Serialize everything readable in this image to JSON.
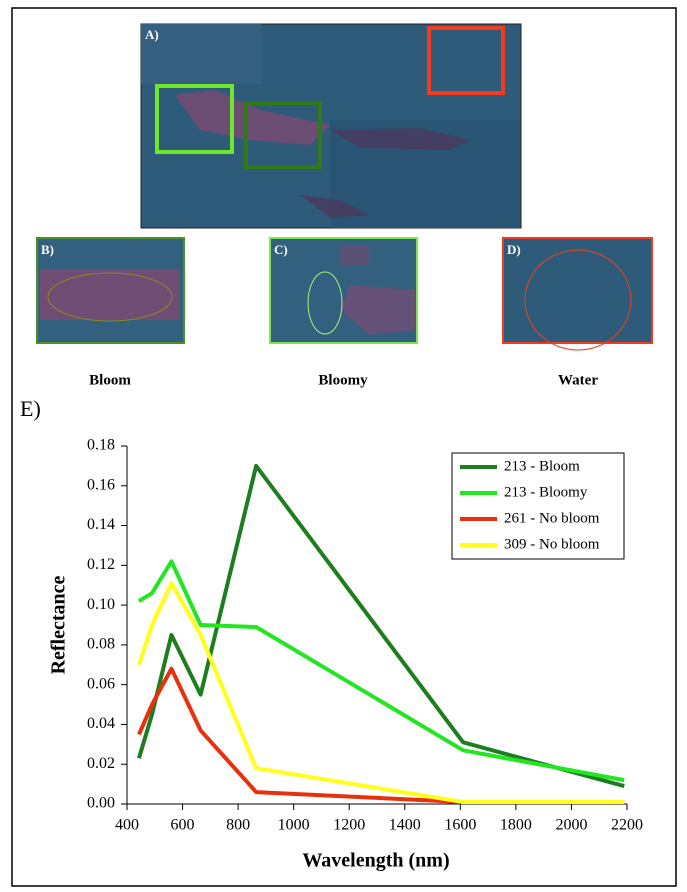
{
  "panels": [
    {
      "label": "A)"
    },
    {
      "label": "B)",
      "caption": "Bloom"
    },
    {
      "label": "C)",
      "caption": "Bloomy"
    },
    {
      "label": "D)",
      "caption": "Water"
    },
    {
      "label": "E)"
    }
  ],
  "chart_data": {
    "type": "line",
    "x_label": "Wavelength (nm)",
    "y_label": "Reflectance",
    "x": [
      443,
      490,
      560,
      665,
      865,
      1610,
      2190
    ],
    "series": [
      {
        "name": "213 - Bloom",
        "color": "#1e7d1e",
        "values": [
          0.023,
          0.045,
          0.085,
          0.055,
          0.17,
          0.031,
          0.009
        ]
      },
      {
        "name": "213 - Bloomy",
        "color": "#22e622",
        "values": [
          0.102,
          0.106,
          0.122,
          0.09,
          0.089,
          0.027,
          0.012
        ]
      },
      {
        "name": "261 - No bloom",
        "color": "#e8300e",
        "values": [
          0.035,
          0.05,
          0.068,
          0.037,
          0.006,
          0.001,
          0.001
        ]
      },
      {
        "name": "309 - No bloom",
        "color": "#ffff1a",
        "values": [
          0.07,
          0.09,
          0.111,
          0.085,
          0.018,
          0.001,
          0.001
        ]
      }
    ],
    "xlim": [
      400,
      2200
    ],
    "xticks": [
      400,
      600,
      800,
      1000,
      1200,
      1400,
      1600,
      1800,
      2000,
      2200
    ],
    "ylim": [
      0,
      0.18
    ],
    "yticks": [
      {
        "value": 0,
        "label": "0.00"
      },
      {
        "value": 0.02,
        "label": "0.02"
      },
      {
        "value": 0.04,
        "label": "0.04"
      },
      {
        "value": 0.06,
        "label": "0.06"
      },
      {
        "value": 0.08,
        "label": "0.08"
      },
      {
        "value": 0.1,
        "label": "0.10"
      },
      {
        "value": 0.12,
        "label": "0.12"
      },
      {
        "value": 0.14,
        "label": "0.14"
      },
      {
        "value": 0.16,
        "label": "0.16"
      },
      {
        "value": 0.18,
        "label": "0.18"
      }
    ],
    "legend": "top-right"
  }
}
